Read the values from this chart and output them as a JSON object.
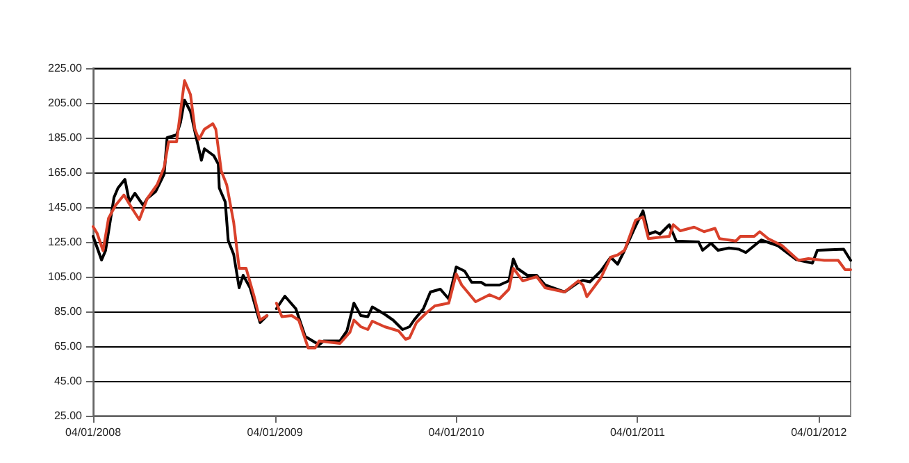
{
  "chart_data": {
    "type": "line",
    "xlim": [
      "2008-01-04",
      "2012-03-08"
    ],
    "xticks": [
      {
        "value": "2008-01-04",
        "label": "04/01/2008"
      },
      {
        "value": "2009-01-04",
        "label": "04/01/2009"
      },
      {
        "value": "2010-01-04",
        "label": "04/01/2010"
      },
      {
        "value": "2011-01-04",
        "label": "04/01/2011"
      },
      {
        "value": "2012-01-04",
        "label": "04/01/2012"
      }
    ],
    "ylim": [
      25,
      225
    ],
    "yticks": [
      {
        "value": 25,
        "label": "25.00"
      },
      {
        "value": 45,
        "label": "45.00"
      },
      {
        "value": 65,
        "label": "65.00"
      },
      {
        "value": 85,
        "label": "85.00"
      },
      {
        "value": 105,
        "label": "105.00"
      },
      {
        "value": 125,
        "label": "125.00"
      },
      {
        "value": 145,
        "label": "145.00"
      },
      {
        "value": 165,
        "label": "165.00"
      },
      {
        "value": 185,
        "label": "185.00"
      },
      {
        "value": 205,
        "label": "205.00"
      },
      {
        "value": 225,
        "label": "225.00"
      }
    ],
    "grid": "y",
    "marker": "none",
    "line_style": "solid",
    "series": [
      {
        "color": "#000000",
        "x": [
          "2008-01-04",
          "2008-01-21",
          "2008-01-29",
          "2008-02-15",
          "2008-02-23",
          "2008-03-08",
          "2008-03-17",
          "2008-03-28",
          "2008-04-14",
          "2008-04-22",
          "2008-05-09",
          "2008-05-26",
          "2008-06-01",
          "2008-06-20",
          "2008-06-28",
          "2008-07-06",
          "2008-07-18",
          "2008-07-29",
          "2008-08-09",
          "2008-08-15",
          "2008-09-03",
          "2008-09-12",
          "2008-09-14",
          "2008-09-26",
          "2008-10-02",
          "2008-10-13",
          "2008-10-24",
          "2008-11-01",
          "2008-11-15",
          "2008-12-05",
          "2008-12-19",
          "2008-12-27",
          "2009-01-07",
          "2009-01-24",
          "2009-02-15",
          "2009-03-06",
          "2009-04-03",
          "2009-04-12",
          "2009-05-15",
          "2009-05-29",
          "2009-06-12",
          "2009-06-26",
          "2009-07-10",
          "2009-07-19",
          "2009-08-13",
          "2009-08-30",
          "2009-09-18",
          "2009-10-02",
          "2009-10-11",
          "2009-10-30",
          "2009-11-13",
          "2009-12-03",
          "2009-12-20",
          "2010-01-04",
          "2010-01-21",
          "2010-02-04",
          "2010-02-23",
          "2010-03-04",
          "2010-04-01",
          "2010-04-20",
          "2010-04-29",
          "2010-05-07",
          "2010-05-27",
          "2010-06-15",
          "2010-07-02",
          "2010-08-10",
          "2010-09-07",
          "2010-09-16",
          "2010-09-30",
          "2010-10-22",
          "2010-11-11",
          "2010-11-25",
          "2010-12-09",
          "2010-12-28",
          "2011-01-15",
          "2011-01-26",
          "2011-02-09",
          "2011-02-18",
          "2011-03-09",
          "2011-03-23",
          "2011-05-07",
          "2011-05-15",
          "2011-06-01",
          "2011-06-15",
          "2011-07-07",
          "2011-07-27",
          "2011-08-10",
          "2011-09-10",
          "2011-10-13",
          "2011-11-19",
          "2011-12-22",
          "2012-01-01",
          "2012-02-23",
          "2012-03-08"
        ],
        "values": [
          128.2,
          114.6,
          120,
          150.6,
          156,
          161,
          148,
          153,
          146,
          150,
          154,
          164,
          185,
          186.6,
          193.8,
          206.6,
          200,
          185.8,
          172,
          178.6,
          174.6,
          169.8,
          156,
          148,
          125.8,
          117.8,
          98.6,
          105.8,
          98.6,
          78.6,
          82.6,
          null,
          86.6,
          93.8,
          86.6,
          70.6,
          65.8,
          68,
          68,
          73.8,
          89.8,
          82.6,
          82,
          87.6,
          83.4,
          80,
          74.6,
          76.2,
          80,
          86.6,
          96.2,
          97.8,
          92.2,
          110.6,
          108.2,
          101.8,
          101.8,
          100.2,
          100.2,
          102.6,
          115.2,
          109.8,
          105.8,
          105.8,
          100.2,
          96.2,
          101.8,
          102.9,
          102,
          108.2,
          116.2,
          112.2,
          120.2,
          132.2,
          142.9,
          129.5,
          130.9,
          129.5,
          134.9,
          125.5,
          125,
          120.2,
          124.2,
          120.2,
          121.5,
          120.8,
          118.9,
          126.1,
          122.9,
          114.9,
          112.8,
          120.2,
          120.8,
          114.4
        ]
      },
      {
        "color": "#d9402a",
        "x": [
          "2008-01-04",
          "2008-01-12",
          "2008-01-24",
          "2008-02-04",
          "2008-02-18",
          "2008-03-06",
          "2008-03-23",
          "2008-04-06",
          "2008-04-22",
          "2008-05-12",
          "2008-05-26",
          "2008-06-04",
          "2008-06-20",
          "2008-07-06",
          "2008-07-18",
          "2008-07-27",
          "2008-08-04",
          "2008-08-15",
          "2008-09-01",
          "2008-09-07",
          "2008-09-18",
          "2008-09-29",
          "2008-10-13",
          "2008-10-24",
          "2008-11-07",
          "2008-11-23",
          "2008-12-05",
          "2008-12-19",
          "2008-12-27",
          "2009-01-07",
          "2009-01-18",
          "2009-02-07",
          "2009-02-21",
          "2009-03-12",
          "2009-03-26",
          "2009-04-03",
          "2009-05-15",
          "2009-06-04",
          "2009-06-12",
          "2009-06-26",
          "2009-07-10",
          "2009-07-19",
          "2009-08-13",
          "2009-09-10",
          "2009-09-24",
          "2009-10-02",
          "2009-10-16",
          "2009-11-05",
          "2009-11-22",
          "2009-12-20",
          "2010-01-04",
          "2010-01-15",
          "2010-02-12",
          "2010-03-12",
          "2010-04-01",
          "2010-04-20",
          "2010-04-29",
          "2010-05-18",
          "2010-06-15",
          "2010-07-02",
          "2010-08-10",
          "2010-09-07",
          "2010-09-16",
          "2010-09-24",
          "2010-10-22",
          "2010-11-11",
          "2010-11-25",
          "2010-12-09",
          "2010-12-31",
          "2011-01-15",
          "2011-01-26",
          "2011-02-18",
          "2011-03-09",
          "2011-03-17",
          "2011-03-31",
          "2011-04-28",
          "2011-05-18",
          "2011-06-09",
          "2011-06-18",
          "2011-07-21",
          "2011-07-30",
          "2011-08-27",
          "2011-09-07",
          "2011-09-24",
          "2011-10-22",
          "2011-11-24",
          "2011-12-14",
          "2012-01-15",
          "2012-02-12",
          "2012-02-26",
          "2012-03-08"
        ],
        "values": [
          133.8,
          130,
          120,
          138.6,
          146,
          152,
          144,
          137.8,
          150,
          158,
          168,
          182.6,
          182.6,
          217.8,
          209.8,
          189.8,
          184,
          189.8,
          193,
          189.8,
          165.8,
          157.8,
          136.2,
          109.8,
          109.8,
          93.8,
          80,
          82.6,
          null,
          89.8,
          82,
          82.6,
          80,
          64,
          64,
          68,
          66.6,
          73,
          80,
          76.2,
          74.6,
          79.4,
          76.2,
          73.8,
          69,
          69.8,
          78.6,
          84.2,
          88.2,
          89.8,
          106.6,
          100.2,
          90.6,
          94.6,
          92.2,
          97.8,
          109.8,
          102.6,
          105,
          98.6,
          96.2,
          102.6,
          100.2,
          93.5,
          104.2,
          116.2,
          117.5,
          120.2,
          137.5,
          139.4,
          126.9,
          127.7,
          128.2,
          134.9,
          131.4,
          133.5,
          130.9,
          132.8,
          126.9,
          125.5,
          128.2,
          128.2,
          130.9,
          126.9,
          122.9,
          114.4,
          115.4,
          114.4,
          114.4,
          109,
          109
        ]
      }
    ]
  }
}
